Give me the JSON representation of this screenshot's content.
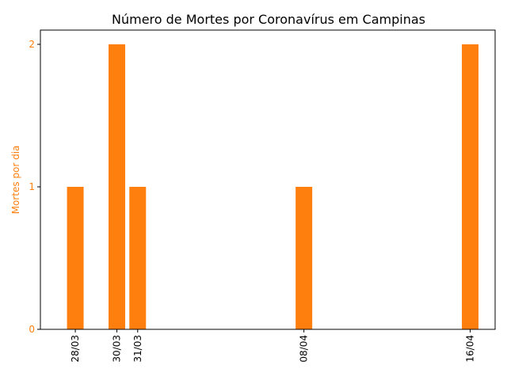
{
  "chart_data": {
    "type": "bar",
    "title": "Número de Mortes por Coronavírus em Campinas",
    "xlabel": "",
    "ylabel": "Mortes por dia",
    "day_offsets": [
      0,
      2,
      3,
      11,
      19
    ],
    "categories": [
      "28/03",
      "30/03",
      "31/03",
      "08/04",
      "16/04"
    ],
    "values": [
      1,
      2,
      1,
      1,
      2
    ],
    "xlim": [
      -1.68,
      20.2
    ],
    "ylim": [
      0,
      2.1
    ],
    "yticks": [
      0,
      1,
      2
    ],
    "ytick_labels": [
      "0",
      "1",
      "2"
    ],
    "grid": false,
    "colors": {
      "bar": "#ff7f0e",
      "axis_label": "#ff7f0e",
      "ytick": "#ff7f0e",
      "spine": "#000000"
    }
  }
}
